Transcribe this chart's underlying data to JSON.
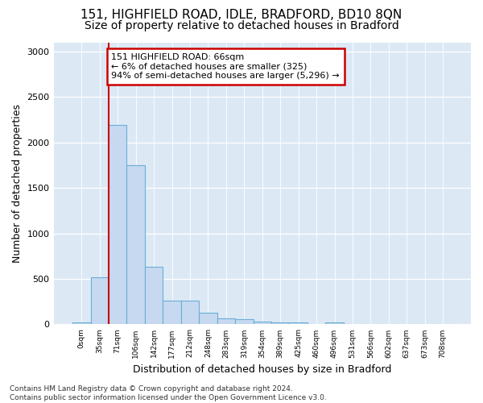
{
  "title1": "151, HIGHFIELD ROAD, IDLE, BRADFORD, BD10 8QN",
  "title2": "Size of property relative to detached houses in Bradford",
  "xlabel": "Distribution of detached houses by size in Bradford",
  "ylabel": "Number of detached properties",
  "footer": "Contains HM Land Registry data © Crown copyright and database right 2024.\nContains public sector information licensed under the Open Government Licence v3.0.",
  "bin_labels": [
    "0sqm",
    "35sqm",
    "71sqm",
    "106sqm",
    "142sqm",
    "177sqm",
    "212sqm",
    "248sqm",
    "283sqm",
    "319sqm",
    "354sqm",
    "389sqm",
    "425sqm",
    "460sqm",
    "496sqm",
    "531sqm",
    "566sqm",
    "602sqm",
    "637sqm",
    "673sqm",
    "708sqm"
  ],
  "bar_heights": [
    25,
    520,
    2190,
    1750,
    635,
    260,
    260,
    125,
    65,
    55,
    30,
    25,
    25,
    0,
    20,
    0,
    0,
    0,
    0,
    0,
    0
  ],
  "bar_color": "#c6d9f0",
  "bar_edge_color": "#6baed6",
  "vline_color": "#cc0000",
  "vline_x_index": 2,
  "annotation_text": "151 HIGHFIELD ROAD: 66sqm\n← 6% of detached houses are smaller (325)\n94% of semi-detached houses are larger (5,296) →",
  "annotation_box_facecolor": "#ffffff",
  "annotation_box_edgecolor": "#cc0000",
  "ylim": [
    0,
    3100
  ],
  "yticks": [
    0,
    500,
    1000,
    1500,
    2000,
    2500,
    3000
  ],
  "bg_color": "#ffffff",
  "plot_bg_color": "#dce9f5",
  "grid_color": "#ffffff",
  "title1_fontsize": 11,
  "title2_fontsize": 10,
  "ylabel_fontsize": 9,
  "xlabel_fontsize": 9,
  "tick_fontsize": 8,
  "annot_fontsize": 8,
  "footer_fontsize": 6.5
}
